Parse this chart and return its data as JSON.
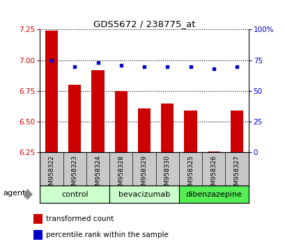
{
  "title": "GDS5672 / 238775_at",
  "samples": [
    "GSM958322",
    "GSM958323",
    "GSM958324",
    "GSM958328",
    "GSM958329",
    "GSM958330",
    "GSM958325",
    "GSM958326",
    "GSM958327"
  ],
  "red_values": [
    7.24,
    6.8,
    6.92,
    6.75,
    6.61,
    6.65,
    6.59,
    6.26,
    6.59
  ],
  "blue_values": [
    75,
    70,
    73,
    71,
    70,
    70,
    70,
    68,
    70
  ],
  "ylim_left": [
    6.25,
    7.25
  ],
  "ylim_right": [
    0,
    100
  ],
  "yticks_left": [
    6.25,
    6.5,
    6.75,
    7.0,
    7.25
  ],
  "yticks_right": [
    0,
    25,
    50,
    75,
    100
  ],
  "groups": [
    {
      "label": "control",
      "start": 0,
      "end": 3,
      "color": "#ccffcc"
    },
    {
      "label": "bevacizumab",
      "start": 3,
      "end": 6,
      "color": "#ccffcc"
    },
    {
      "label": "dibenzazepine",
      "start": 6,
      "end": 9,
      "color": "#55ee55"
    }
  ],
  "bar_color": "#cc0000",
  "dot_color": "#0000cc",
  "bar_width": 0.55,
  "tick_area_color": "#c8c8c8",
  "legend_red": "transformed count",
  "legend_blue": "percentile rank within the sample",
  "agent_label": "agent"
}
